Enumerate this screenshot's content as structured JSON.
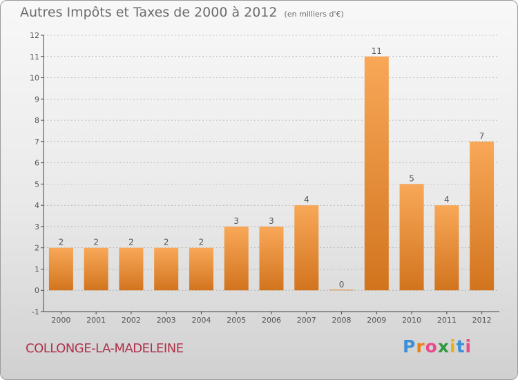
{
  "title": "Autres Impôts et Taxes de 2000 à 2012",
  "subtitle": "(en milliers d'€)",
  "commune": "COLLONGE-LA-MADELEINE",
  "logo": {
    "text": "Proxiti",
    "colors": [
      "#3a8fd8",
      "#e8801a",
      "#e94a8a",
      "#2f9a3a",
      "#e8b01a",
      "#3a8fd8",
      "#e94a8a"
    ]
  },
  "colors": {
    "bar_light": "#f8a858",
    "bar_dark": "#d2741e",
    "axis": "#444444",
    "grid": "#999999"
  },
  "chart_data": {
    "type": "bar",
    "categories": [
      "2000",
      "2001",
      "2002",
      "2003",
      "2004",
      "2005",
      "2006",
      "2007",
      "2008",
      "2009",
      "2010",
      "2011",
      "2012"
    ],
    "values": [
      2,
      2,
      2,
      2,
      2,
      3,
      3,
      4,
      0,
      11,
      5,
      4,
      7
    ],
    "data_labels": [
      "2",
      "2",
      "2",
      "2",
      "2",
      "3",
      "3",
      "4",
      "0",
      "11",
      "5",
      "4",
      "7"
    ],
    "y_ticks": [
      "-1",
      "0",
      "1",
      "2",
      "3",
      "4",
      "5",
      "6",
      "7",
      "8",
      "9",
      "10",
      "11",
      "12"
    ],
    "ylim": [
      -1,
      12
    ],
    "xlabel": "",
    "ylabel": "",
    "grid": "horizontal dashed"
  }
}
